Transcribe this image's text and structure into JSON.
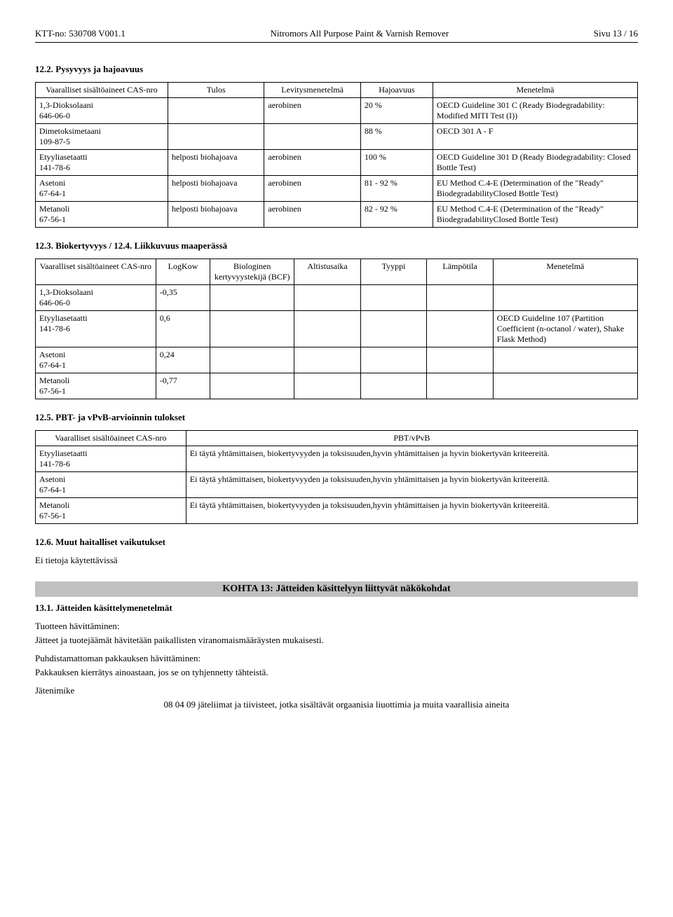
{
  "header": {
    "left": "KTT-no: 530708   V001.1",
    "center": "Nitromors All Purpose Paint & Varnish Remover",
    "right": "Sivu 13 / 16"
  },
  "s12_2": {
    "title": "12.2. Pysyvyys ja hajoavuus",
    "columns": [
      "Vaaralliset sisältöaineet\nCAS-nro",
      "Tulos",
      "Levitysmenetelmä",
      "Hajoavuus",
      "Menetelmä"
    ],
    "rows": [
      {
        "c0": "1,3-Dioksolaani\n646-06-0",
        "c1": "",
        "c2": "aerobinen",
        "c3": "20 %",
        "c4": "OECD Guideline 301 C (Ready Biodegradability: Modified MITI Test (I))"
      },
      {
        "c0": "Dimetoksimetaani\n109-87-5",
        "c1": "",
        "c2": "",
        "c3": "88 %",
        "c4": "OECD 301 A - F"
      },
      {
        "c0": "Etyyliasetaatti\n141-78-6",
        "c1": "helposti biohajoava",
        "c2": "aerobinen",
        "c3": "100 %",
        "c4": "OECD Guideline 301 D (Ready Biodegradability: Closed Bottle Test)"
      },
      {
        "c0": "Asetoni\n67-64-1",
        "c1": "helposti biohajoava",
        "c2": "aerobinen",
        "c3": "81 - 92 %",
        "c4": "EU Method C.4-E (Determination of the \"Ready\" BiodegradabilityClosed Bottle Test)"
      },
      {
        "c0": "Metanoli\n67-56-1",
        "c1": "helposti biohajoava",
        "c2": "aerobinen",
        "c3": "82 - 92 %",
        "c4": "EU Method C.4-E (Determination of the \"Ready\" BiodegradabilityClosed Bottle Test)"
      }
    ]
  },
  "s12_3": {
    "title": "12.3. Biokertyvyys / 12.4. Liikkuvuus maaperässä",
    "columns": [
      "Vaaralliset sisältöaineet\nCAS-nro",
      "LogKow",
      "Biologinen kertyvyystekijä (BCF)",
      "Altistusaika",
      "Tyyppi",
      "Lämpötila",
      "Menetelmä"
    ],
    "rows": [
      {
        "c0": "1,3-Dioksolaani\n646-06-0",
        "c1": "-0,35",
        "c2": "",
        "c3": "",
        "c4": "",
        "c5": "",
        "c6": ""
      },
      {
        "c0": "Etyyliasetaatti\n141-78-6",
        "c1": "0,6",
        "c2": "",
        "c3": "",
        "c4": "",
        "c5": "",
        "c6": "OECD Guideline 107 (Partition Coefficient (n-octanol / water), Shake Flask Method)"
      },
      {
        "c0": "Asetoni\n67-64-1",
        "c1": "0,24",
        "c2": "",
        "c3": "",
        "c4": "",
        "c5": "",
        "c6": ""
      },
      {
        "c0": "Metanoli\n67-56-1",
        "c1": "-0,77",
        "c2": "",
        "c3": "",
        "c4": "",
        "c5": "",
        "c6": ""
      }
    ]
  },
  "s12_5": {
    "title": "12.5. PBT- ja vPvB-arvioinnin tulokset",
    "columns": [
      "Vaaralliset sisältöaineet\nCAS-nro",
      "PBT/vPvB"
    ],
    "rows": [
      {
        "c0": "Etyyliasetaatti\n141-78-6",
        "c1": "Ei täytä yhtämittaisen, biokertyvyyden ja toksisuuden,hyvin yhtämittaisen ja hyvin biokertyvän kriteereitä."
      },
      {
        "c0": "Asetoni\n67-64-1",
        "c1": "Ei täytä yhtämittaisen, biokertyvyyden ja toksisuuden,hyvin yhtämittaisen ja hyvin biokertyvän kriteereitä."
      },
      {
        "c0": "Metanoli\n67-56-1",
        "c1": "Ei täytä yhtämittaisen, biokertyvyyden ja toksisuuden,hyvin yhtämittaisen ja hyvin biokertyvän kriteereitä."
      }
    ]
  },
  "s12_6": {
    "title": "12.6. Muut haitalliset vaikutukset",
    "text": "Ei tietoja käytettävissä"
  },
  "kohta13": {
    "bar": "KOHTA 13: Jätteiden käsittelyyn liittyvät näkökohdat",
    "sub_title": "13.1. Jätteiden käsittelymenetelmät",
    "p1_label": "Tuotteen hävittäminen:",
    "p1_text": "Jätteet ja tuotejäämät hävitetään paikallisten viranomaismääräysten mukaisesti.",
    "p2_label": "Puhdistamattoman pakkauksen hävittäminen:",
    "p2_text": "Pakkauksen kierrätys ainoastaan, jos se on tyhjennetty tähteistä.",
    "p3_label": "Jätenimike",
    "p3_text": "08 04 09 jäteliimat ja tiivisteet, jotka sisältävät orgaanisia liuottimia ja muita vaarallisia aineita"
  }
}
